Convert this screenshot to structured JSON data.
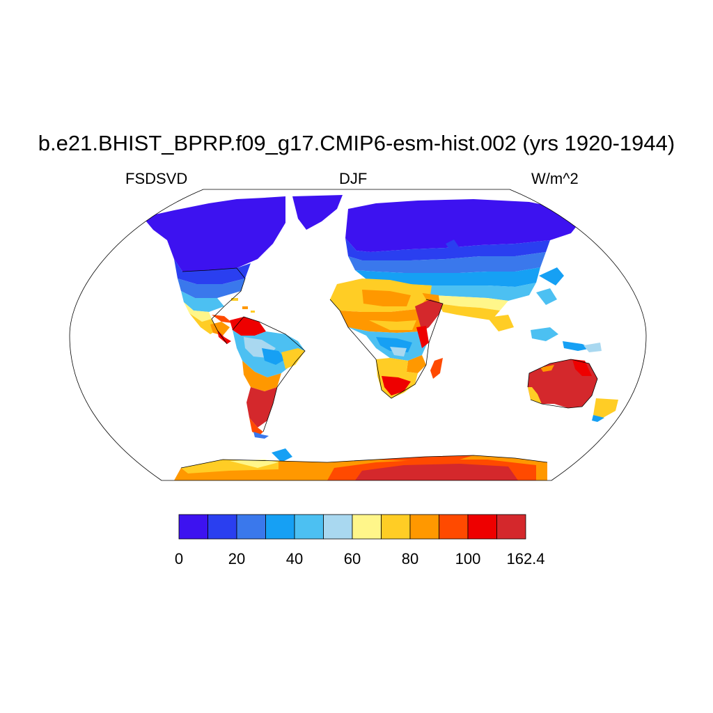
{
  "title": "b.e21.BHIST_BPRP.f09_g17.CMIP6-esm-hist.002 (yrs 1920-1944)",
  "subtitle_left": "FSDSVD",
  "subtitle_center": "DJF",
  "subtitle_right": "W/m^2",
  "colorbar": {
    "colors": [
      "#3d12f0",
      "#2a3ff0",
      "#3a78ec",
      "#16a0f4",
      "#4cc0f2",
      "#a9d8f0",
      "#fff68a",
      "#ffcd25",
      "#ff9800",
      "#ff4a00",
      "#ee0000",
      "#d4282c"
    ],
    "labels": [
      "0",
      "20",
      "40",
      "60",
      "80",
      "100",
      "162.4"
    ]
  },
  "map": {
    "projection": "Robinson",
    "land_color": "#ffffff",
    "ocean_color": "#ffffff"
  }
}
